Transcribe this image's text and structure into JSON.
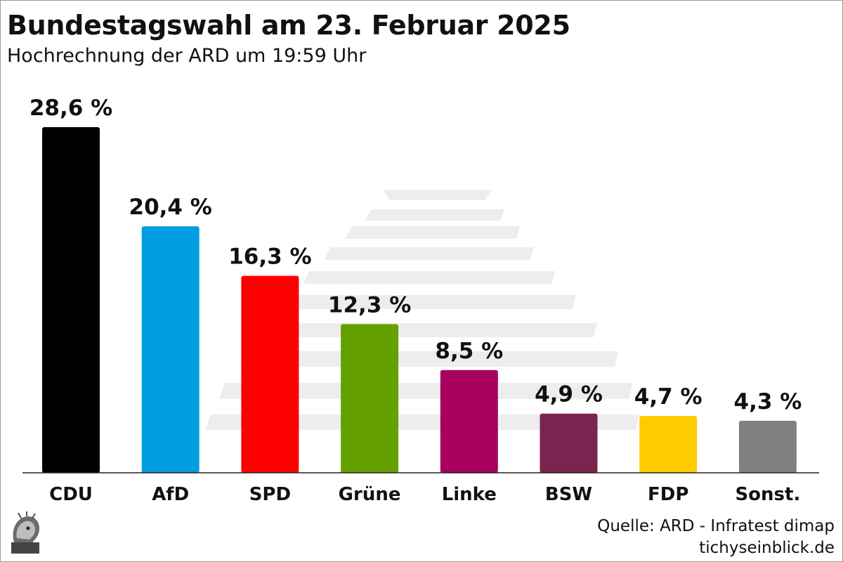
{
  "header": {
    "title": "Bundestagswahl am 23. Februar 2025",
    "subtitle": "Hochrechnung der ARD um 19:59 Uhr"
  },
  "footer": {
    "source": "Quelle: ARD - Infratest dimap",
    "site": "tichyseinblick.de"
  },
  "chart_data": {
    "type": "bar",
    "title": "Bundestagswahl am 23. Februar 2025",
    "subtitle": "Hochrechnung der ARD um 19:59 Uhr",
    "categories": [
      "CDU",
      "AfD",
      "SPD",
      "Grüne",
      "Linke",
      "BSW",
      "FDP",
      "Sonst."
    ],
    "values": [
      28.6,
      20.4,
      16.3,
      12.3,
      8.5,
      4.9,
      4.7,
      4.3
    ],
    "value_labels": [
      "28,6 %",
      "20,4 %",
      "16,3 %",
      "12,3 %",
      "8,5 %",
      "4,9 %",
      "4,7 %",
      "4,3 %"
    ],
    "colors": [
      "#000000",
      "#009ee0",
      "#ff0000",
      "#64a000",
      "#a7005e",
      "#7b2450",
      "#ffcc00",
      "#808080"
    ],
    "unit": "%",
    "xlabel": "",
    "ylabel": "",
    "ylim": [
      0,
      30
    ],
    "grid": false,
    "legend": "none"
  }
}
